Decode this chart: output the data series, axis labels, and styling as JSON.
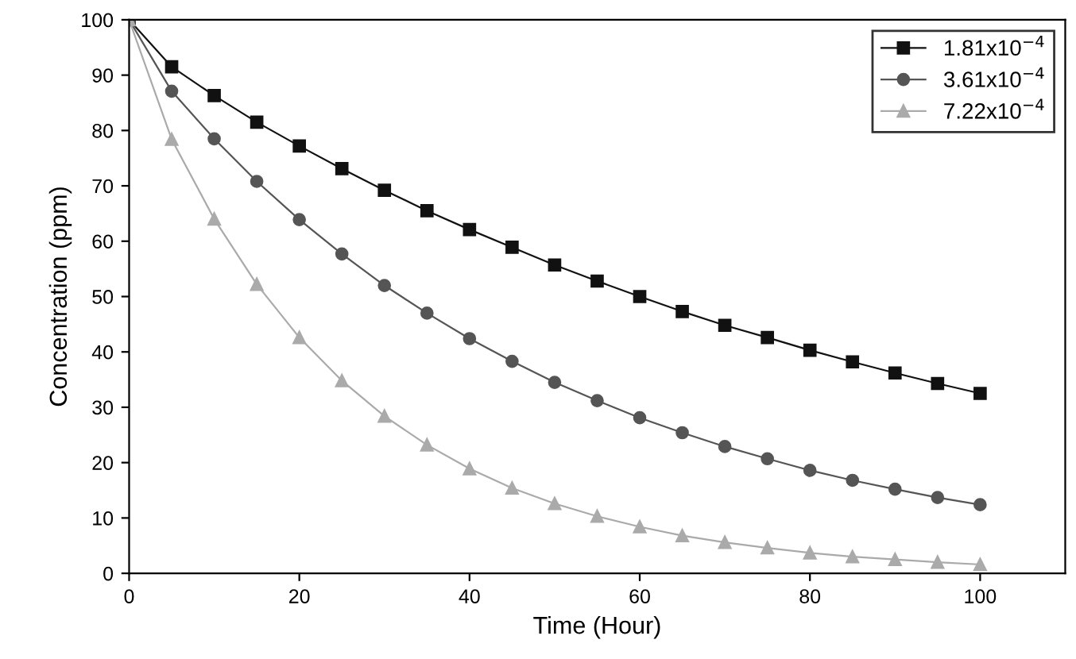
{
  "chart_data": {
    "type": "line",
    "xlabel": "Time (Hour)",
    "ylabel": "Concentration (ppm)",
    "x": [
      0,
      5,
      10,
      15,
      20,
      25,
      30,
      35,
      40,
      45,
      50,
      55,
      60,
      65,
      70,
      75,
      80,
      85,
      90,
      95,
      100
    ],
    "series": [
      {
        "name": "1.81x10$^{−4}$",
        "color": "#111111",
        "marker": "square",
        "values": [
          100,
          91.5,
          86.3,
          81.5,
          77.2,
          73.1,
          69.2,
          65.5,
          62.1,
          58.9,
          55.7,
          52.8,
          50,
          47.3,
          44.8,
          42.6,
          40.3,
          38.2,
          36.2,
          34.3,
          32.5
        ]
      },
      {
        "name": "3.61x10$^{−4}$",
        "color": "#555555",
        "marker": "circle",
        "values": [
          100,
          87.1,
          78.5,
          70.8,
          63.9,
          57.7,
          52.0,
          47.0,
          42.4,
          38.3,
          34.5,
          31.2,
          28.1,
          25.4,
          22.9,
          20.7,
          18.6,
          16.8,
          15.2,
          13.7,
          12.4
        ]
      },
      {
        "name": "7.22x10$^{−4}$",
        "color": "#aaaaaa",
        "marker": "triangle",
        "values": [
          100,
          78.4,
          64.0,
          52.2,
          42.6,
          34.8,
          28.4,
          23.2,
          18.9,
          15.4,
          12.6,
          10.3,
          8.4,
          6.8,
          5.6,
          4.6,
          3.7,
          3.0,
          2.5,
          2.0,
          1.6
        ]
      }
    ],
    "xlim": [
      0,
      110
    ],
    "xticks": [
      0,
      20,
      40,
      60,
      80,
      100
    ],
    "ylim": [
      0,
      100
    ],
    "yticks": [
      0,
      10,
      20,
      30,
      40,
      50,
      60,
      70,
      80,
      90,
      100
    ],
    "grid": false,
    "legend": "top right",
    "line_style": "solid"
  }
}
